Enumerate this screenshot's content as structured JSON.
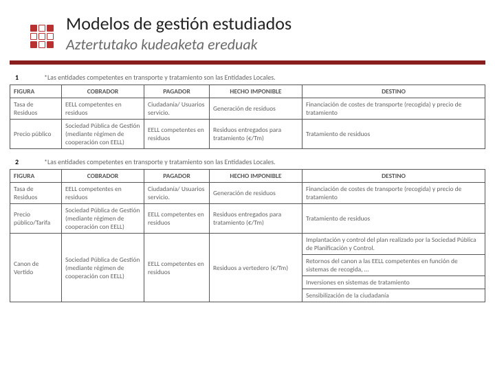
{
  "title": "Modelos de gestión estudiados",
  "subtitle": "Aztertutako kudeaketa ereduak",
  "rule_color": "#8a1e1e",
  "logo_color": "#b93030",
  "columns": {
    "figura": "FIGURA",
    "cobrador": "COBRADOR",
    "pagador": "PAGADOR",
    "hecho": "HECHO IMPONIBLE",
    "destino": "DESTINO"
  },
  "table1": {
    "num": "1",
    "note": "*Las entidades competentes en transporte y tratamiento son las Entidades Locales.",
    "rows": [
      {
        "figura": "Tasa de Residuos",
        "cobrador": "EELL competentes en residuos",
        "pagador": "Ciudadanía/ Usuarios servicio.",
        "hecho": "Generación de residuos",
        "destino": "Financiación de costes de transporte (recogida) y precio de tratamiento"
      },
      {
        "figura": "Precio público",
        "cobrador": "Sociedad Pública de Gestión (mediante régimen de cooperación con EELL)",
        "pagador": "EELL competentes en residuos",
        "hecho": "Residuos entregados para tratamiento (€/Tm)",
        "destino": "Tratamiento de residuos"
      }
    ]
  },
  "table2": {
    "num": "2",
    "note": "*Las entidades competentes en transporte y tratamiento son las Entidades Locales.",
    "rows": [
      {
        "figura": "Tasa de Residuos",
        "cobrador": "EELL competentes en residuos",
        "pagador": "Ciudadanía/ Usuarios servicio.",
        "hecho": "Generación de residuos",
        "destino": "Financiación de costes de transporte (recogida) y precio de tratamiento"
      },
      {
        "figura": "Precio público/Tarifa",
        "cobrador": "Sociedad Pública de Gestión (mediante régimen de cooperación con EELL)",
        "pagador": "EELL competentes en residuos",
        "hecho": "Residuos entregados para tratamiento (€/Tm)",
        "destino": "Tratamiento de residuos"
      }
    ],
    "canon": {
      "figura": "Canon de Vertido",
      "cobrador": "Sociedad Pública de Gestión (mediante régimen de cooperación con EELL)",
      "pagador": "EELL competentes en residuos",
      "hecho": "Residuos a vertedero (€/Tm)",
      "destinos": [
        "Implantación y control del plan realizado por la Sociedad Pública de Planificación y Control.",
        "Retornos del canon a las EELL competentes en función de sistemas de recogida, …",
        "Inversiones en sistemas de tratamiento",
        "Sensibilización de la ciudadanía"
      ]
    }
  }
}
